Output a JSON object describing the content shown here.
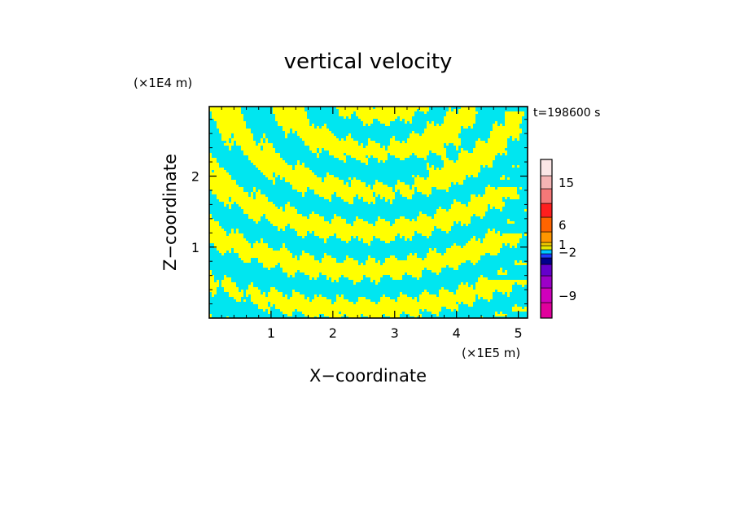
{
  "chart_data": {
    "type": "heatmap",
    "title": "vertical velocity",
    "xlabel": "X−coordinate",
    "ylabel": "Z−coordinate",
    "x_unit": "(×1E5 m)",
    "y_unit": "(×1E4 m)",
    "time_label": "t=198600 s",
    "xlim": [
      0,
      5.15
    ],
    "ylim": [
      0,
      2.98
    ],
    "x_ticks": [
      {
        "value": 1,
        "label": "1"
      },
      {
        "value": 2,
        "label": "2"
      },
      {
        "value": 3,
        "label": "3"
      },
      {
        "value": 4,
        "label": "4"
      },
      {
        "value": 5,
        "label": "5"
      }
    ],
    "y_ticks": [
      {
        "value": 1,
        "label": "1"
      },
      {
        "value": 2,
        "label": "2"
      }
    ],
    "colorbar": {
      "levels": [
        {
          "color": "#e0009c"
        },
        {
          "color": "#d000bc"
        },
        {
          "color": "#9c00c8"
        },
        {
          "color": "#6400cc"
        },
        {
          "color": "#00008c"
        },
        {
          "color": "#1e3cff"
        },
        {
          "color": "#00c8ff"
        },
        {
          "color": "#e6e600"
        },
        {
          "color": "#f0c800"
        },
        {
          "color": "#ff9600"
        },
        {
          "color": "#ff6400"
        },
        {
          "color": "#ff1e1e"
        },
        {
          "color": "#f57878"
        },
        {
          "color": "#f5b4b4"
        },
        {
          "color": "#fbe6e6"
        }
      ],
      "labels": [
        {
          "text": "−9",
          "level": 1
        },
        {
          "text": "−2",
          "level": 6
        },
        {
          "text": "1",
          "level": 8
        },
        {
          "text": "6",
          "level": 10
        },
        {
          "text": "15",
          "level": 13
        }
      ]
    },
    "field": {
      "positive_color": "#ffff00",
      "negative_color": "#00e6f0",
      "positive_label": "1",
      "negative_label": "−2"
    },
    "grid": false,
    "legend_placement": "right"
  }
}
